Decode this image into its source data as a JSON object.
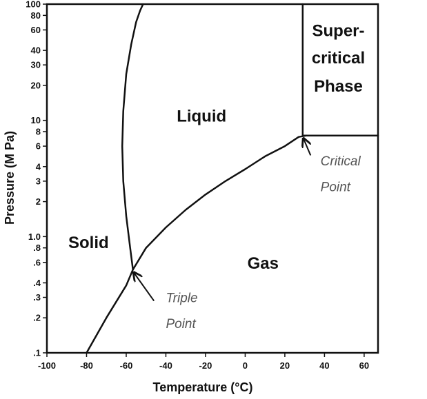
{
  "chart_data": {
    "type": "line",
    "title": "",
    "xlabel": "Temperature (°C)",
    "ylabel": "Pressure (M Pa)",
    "xlim": [
      -100,
      67
    ],
    "ylim": [
      0.1,
      100
    ],
    "yscale": "log",
    "grid": false,
    "x_ticks": [
      {
        "value": -100,
        "label": "-100"
      },
      {
        "value": -80,
        "label": "-80"
      },
      {
        "value": -60,
        "label": "-60"
      },
      {
        "value": -40,
        "label": "-40"
      },
      {
        "value": -20,
        "label": "-20"
      },
      {
        "value": 0,
        "label": "0"
      },
      {
        "value": 20,
        "label": "20"
      },
      {
        "value": 40,
        "label": "40"
      },
      {
        "value": 60,
        "label": "60"
      }
    ],
    "y_ticks": [
      {
        "value": 100,
        "label": "100"
      },
      {
        "value": 80,
        "label": "80"
      },
      {
        "value": 60,
        "label": "60"
      },
      {
        "value": 40,
        "label": "40"
      },
      {
        "value": 30,
        "label": "30"
      },
      {
        "value": 20,
        "label": "20"
      },
      {
        "value": 10,
        "label": "10"
      },
      {
        "value": 8,
        "label": "8"
      },
      {
        "value": 6,
        "label": "6"
      },
      {
        "value": 4,
        "label": "4"
      },
      {
        "value": 3,
        "label": "3"
      },
      {
        "value": 2,
        "label": "2"
      },
      {
        "value": 1.0,
        "label": "1.0"
      },
      {
        "value": 0.8,
        "label": ".8"
      },
      {
        "value": 0.6,
        "label": ".6"
      },
      {
        "value": 0.4,
        "label": ".4"
      },
      {
        "value": 0.3,
        "label": ".3"
      },
      {
        "value": 0.2,
        "label": ".2"
      },
      {
        "value": 0.1,
        "label": ".1"
      }
    ],
    "series": [
      {
        "id": "melting-curve",
        "x": [
          -56.6,
          -58,
          -60,
          -61.5,
          -62,
          -61.5,
          -60,
          -57.5,
          -55,
          -53,
          -51.5
        ],
        "y": [
          0.52,
          0.8,
          1.5,
          3,
          6,
          12,
          25,
          45,
          70,
          88,
          100
        ]
      },
      {
        "id": "vaporization-curve",
        "x": [
          -80,
          -70,
          -60,
          -56.6,
          -50,
          -40,
          -30,
          -20,
          -10,
          0,
          10,
          20,
          27,
          31
        ],
        "y": [
          0.1,
          0.2,
          0.38,
          0.52,
          0.8,
          1.2,
          1.7,
          2.3,
          3.0,
          3.8,
          4.9,
          6.0,
          7.2,
          7.4
        ]
      },
      {
        "id": "supercritical-vertical",
        "x": [
          29,
          29
        ],
        "y": [
          7.4,
          100
        ]
      },
      {
        "id": "supercritical-horizontal",
        "x": [
          29,
          67
        ],
        "y": [
          7.4,
          7.4
        ]
      }
    ],
    "regions": [
      {
        "id": "solid",
        "label": "Solid",
        "x": -79,
        "y": 0.9
      },
      {
        "id": "liquid",
        "label": "Liquid",
        "x": -22,
        "y": 11
      },
      {
        "id": "gas",
        "label": "Gas",
        "x": 9,
        "y": 0.6
      },
      {
        "id": "supercritical",
        "lines": [
          "Super-",
          "critical",
          "Phase"
        ],
        "x": 47,
        "y": [
          60,
          35,
          20
        ]
      }
    ],
    "annotations": [
      {
        "id": "critical-point",
        "lines": [
          "Critical",
          "Point"
        ],
        "point": {
          "x": 29,
          "y": 7.4
        },
        "text_x": 38,
        "text_y": [
          4.5,
          2.7
        ],
        "arrow_from": {
          "x": 33,
          "y": 5.0
        }
      },
      {
        "id": "triple-point",
        "lines": [
          "Triple",
          "Point"
        ],
        "point": {
          "x": -56.6,
          "y": 0.52
        },
        "text_x": -40,
        "text_y": [
          0.3,
          0.18
        ],
        "arrow_from": {
          "x": -46,
          "y": 0.28
        }
      }
    ]
  }
}
